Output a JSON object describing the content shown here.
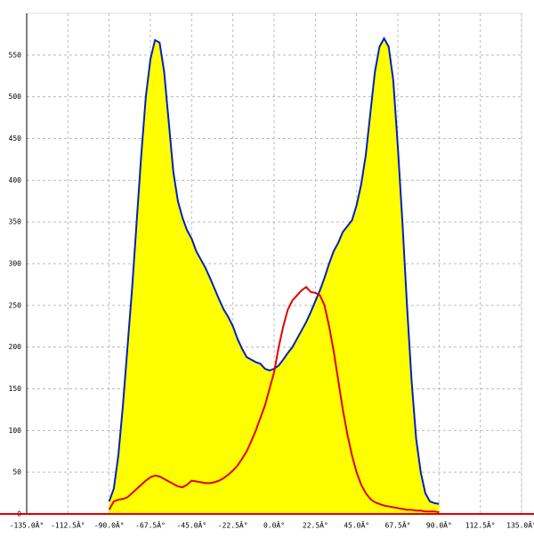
{
  "chart_data": {
    "type": "area",
    "x": [
      -90,
      -87.5,
      -85,
      -82.5,
      -80,
      -77.5,
      -75,
      -72.5,
      -70,
      -67.5,
      -65,
      -62.5,
      -60,
      -57.5,
      -55,
      -52.5,
      -50,
      -47.5,
      -45,
      -42.5,
      -40,
      -37.5,
      -35,
      -32.5,
      -30,
      -27.5,
      -25,
      -22.5,
      -20,
      -17.5,
      -15,
      -12.5,
      -10,
      -7.5,
      -5,
      -2.5,
      0,
      2.5,
      5,
      7.5,
      10,
      12.5,
      15,
      17.5,
      20,
      22.5,
      25,
      27.5,
      30,
      32.5,
      35,
      37.5,
      40,
      42.5,
      45,
      47.5,
      50,
      52.5,
      55,
      57.5,
      60,
      62.5,
      65,
      67.5,
      70,
      72.5,
      75,
      77.5,
      80,
      82.5,
      85,
      87.5,
      90
    ],
    "series": [
      {
        "color": "#0020c0",
        "fill": "#ffff00",
        "values": [
          15,
          30,
          70,
          130,
          200,
          270,
          350,
          430,
          500,
          545,
          568,
          565,
          530,
          470,
          410,
          375,
          355,
          340,
          330,
          315,
          305,
          295,
          283,
          270,
          257,
          245,
          236,
          225,
          210,
          198,
          188,
          185,
          182,
          180,
          174,
          172,
          174,
          178,
          185,
          193,
          200,
          210,
          220,
          230,
          242,
          255,
          268,
          283,
          300,
          315,
          325,
          338,
          345,
          352,
          370,
          395,
          430,
          480,
          530,
          560,
          570,
          560,
          520,
          440,
          350,
          250,
          160,
          90,
          50,
          25,
          15,
          13,
          12
        ]
      },
      {
        "color": "#e00000",
        "values": [
          5,
          15,
          17,
          18,
          20,
          25,
          30,
          35,
          40,
          44,
          46,
          45,
          42,
          39,
          36,
          33,
          32,
          35,
          40,
          39,
          38,
          37,
          37,
          38,
          40,
          43,
          47,
          52,
          58,
          66,
          75,
          87,
          100,
          115,
          130,
          150,
          170,
          200,
          225,
          245,
          256,
          262,
          268,
          272,
          266,
          265,
          262,
          250,
          225,
          195,
          160,
          125,
          95,
          70,
          50,
          35,
          25,
          18,
          14,
          12,
          10,
          9,
          8,
          7,
          6,
          5,
          5,
          4,
          4,
          3,
          3,
          3,
          2
        ]
      }
    ],
    "xlim": [
      -135,
      135
    ],
    "xticks": [
      {
        "value": -135,
        "label": "-135.0Â°"
      },
      {
        "value": -112.5,
        "label": "-112.5Â°"
      },
      {
        "value": -90,
        "label": "-90.0Â°"
      },
      {
        "value": -67.5,
        "label": "-67.5Â°"
      },
      {
        "value": -45,
        "label": "-45.0Â°"
      },
      {
        "value": -22.5,
        "label": "-22.5Â°"
      },
      {
        "value": 0,
        "label": "0.0Â°"
      },
      {
        "value": 22.5,
        "label": "22.5Â°"
      },
      {
        "value": 45,
        "label": "45.0Â°"
      },
      {
        "value": 67.5,
        "label": "67.5Â°"
      },
      {
        "value": 90,
        "label": "90.0Â°"
      },
      {
        "value": 112.5,
        "label": "112.5Â°"
      },
      {
        "value": 135,
        "label": "135.0Â°"
      }
    ],
    "ylim": [
      0,
      600
    ],
    "yticks": [
      0,
      50,
      100,
      150,
      200,
      250,
      300,
      350,
      400,
      450,
      500,
      550
    ],
    "grid": true
  }
}
